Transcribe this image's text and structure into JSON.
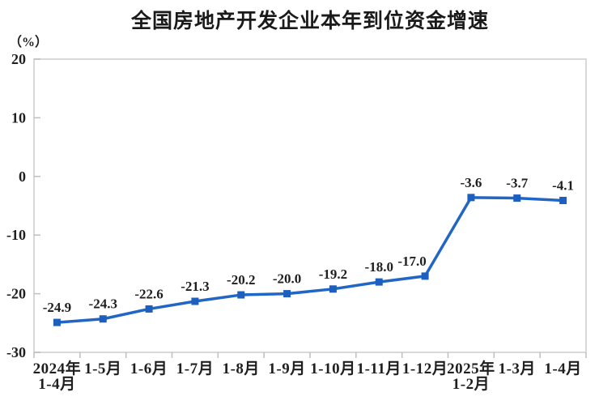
{
  "chart_data": {
    "type": "line",
    "title": "全国房地产开发企业本年到位资金增速",
    "unit_label": "（%）",
    "categories": [
      "2024年\n1-4月",
      "1-5月",
      "1-6月",
      "1-7月",
      "1-8月",
      "1-9月",
      "1-10月",
      "1-11月",
      "1-12月",
      "2025年\n1-2月",
      "1-3月",
      "1-4月"
    ],
    "values": [
      -24.9,
      -24.3,
      -22.6,
      -21.3,
      -20.2,
      -20.0,
      -19.2,
      -18.0,
      -17.0,
      -3.6,
      -3.7,
      -4.1
    ],
    "data_labels": [
      "-24.9",
      "-24.3",
      "-22.6",
      "-21.3",
      "-20.2",
      "-20.0",
      "-19.2",
      "-18.0",
      "-17.0",
      "-3.6",
      "-3.7",
      "-4.1"
    ],
    "data_label_dx": [
      0,
      0,
      0,
      0,
      0,
      0,
      0,
      0,
      -16,
      0,
      0,
      0
    ],
    "y_ticks": [
      "20",
      "10",
      "0",
      "-10",
      "-20",
      "-30"
    ],
    "y_tick_values": [
      20,
      10,
      0,
      -10,
      -20,
      -30
    ],
    "ylim": [
      -30,
      20
    ],
    "xlabel": "",
    "ylabel": "（%）",
    "grid": false,
    "legend": false,
    "series_color": "#2166C4",
    "marker_color": "#1D5FBE",
    "axis_border_color": "#D9D9D9",
    "tick_color": "#BFBFBF",
    "text_color": "#1F1F1F",
    "background_color": "#FFFFFF"
  }
}
